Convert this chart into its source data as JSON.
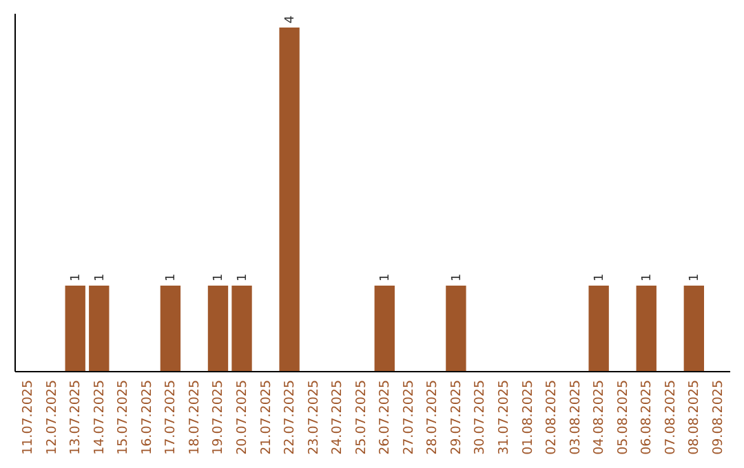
{
  "chart_data": {
    "type": "bar",
    "categories": [
      "11.07.2025",
      "12.07.2025",
      "13.07.2025",
      "14.07.2025",
      "15.07.2025",
      "16.07.2025",
      "17.07.2025",
      "18.07.2025",
      "19.07.2025",
      "20.07.2025",
      "21.07.2025",
      "22.07.2025",
      "23.07.2025",
      "24.07.2025",
      "25.07.2025",
      "26.07.2025",
      "27.07.2025",
      "28.07.2025",
      "29.07.2025",
      "30.07.2025",
      "31.07.2025",
      "01.08.2025",
      "02.08.2025",
      "03.08.2025",
      "04.08.2025",
      "05.08.2025",
      "06.08.2025",
      "07.08.2025",
      "08.08.2025",
      "09.08.2025"
    ],
    "values": [
      0,
      0,
      1,
      1,
      0,
      0,
      1,
      0,
      1,
      1,
      0,
      4,
      0,
      0,
      0,
      1,
      0,
      0,
      1,
      0,
      0,
      0,
      0,
      0,
      1,
      0,
      1,
      0,
      1,
      0
    ],
    "value_labels": [
      null,
      null,
      "1",
      "1",
      null,
      null,
      "1",
      null,
      "1",
      "1",
      null,
      "4",
      null,
      null,
      null,
      "1",
      null,
      null,
      "1",
      null,
      null,
      null,
      null,
      null,
      "1",
      null,
      "1",
      null,
      "1",
      null
    ],
    "color": "#a0572a"
  }
}
